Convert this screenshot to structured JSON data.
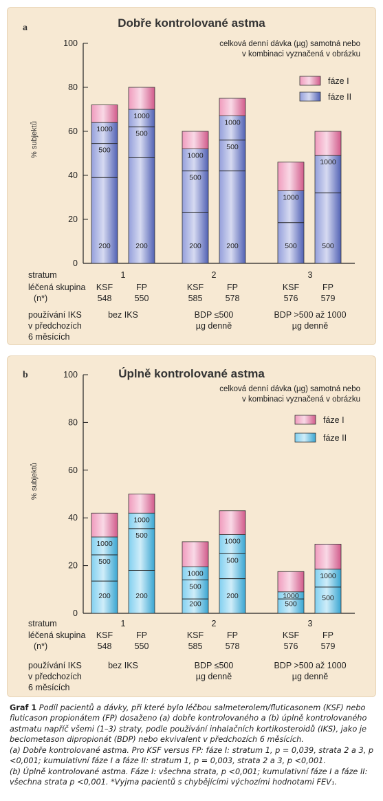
{
  "panels": [
    {
      "letter": "a",
      "title": "Dobře kontrolované astma",
      "note_line1": "celková denní dávka (µg) samotná nebo",
      "note_line2": "v kombinaci vyznačená v obrázku",
      "ylabel": "% subjektů",
      "legend": [
        {
          "label": "fáze I",
          "color": "#e8659a"
        },
        {
          "label": "fáze II",
          "color": "#5a6cc8"
        }
      ],
      "row_labels": {
        "stratum": "stratum",
        "group": "léčená skupina",
        "n": "(n*)",
        "iks1": "používání IKS",
        "iks2": "v předchozích",
        "iks3": "6 měsících"
      },
      "strata": [
        {
          "number": "1",
          "iks1": "bez IKS",
          "iks2": ""
        },
        {
          "number": "2",
          "iks1": "BDP ≤500",
          "iks2": "µg denně"
        },
        {
          "number": "3",
          "iks1": "BDP >500 až 1000",
          "iks2": "µg denně"
        }
      ],
      "chart_data": {
        "type": "bar",
        "ylim": [
          0,
          100
        ],
        "yticks": [
          0,
          20,
          40,
          60,
          80,
          100
        ],
        "bars": [
          {
            "group": "KSF",
            "n": "548",
            "stratum": "1",
            "phase2_top": 64,
            "phase1_top": 72,
            "dividers": [
              {
                "v": 54.5,
                "label_above": "1000"
              },
              {
                "v": 39,
                "label_above": "500"
              }
            ],
            "base_label": "200",
            "segments": [
              {
                "dose": "200",
                "from": 0,
                "to": 39
              },
              {
                "dose": "500",
                "from": 39,
                "to": 54.5
              },
              {
                "dose": "1000",
                "from": 54.5,
                "to": 64
              }
            ]
          },
          {
            "group": "FP",
            "n": "550",
            "stratum": "1",
            "phase2_top": 70,
            "phase1_top": 80,
            "dividers": [
              {
                "v": 62,
                "label_above": "1000"
              },
              {
                "v": 48,
                "label_above": "500"
              }
            ],
            "base_label": "200",
            "segments": [
              {
                "dose": "200",
                "from": 0,
                "to": 48
              },
              {
                "dose": "500",
                "from": 48,
                "to": 62
              },
              {
                "dose": "1000",
                "from": 62,
                "to": 70
              }
            ]
          },
          {
            "group": "KSF",
            "n": "585",
            "stratum": "2",
            "phase2_top": 52,
            "phase1_top": 60,
            "dividers": [
              {
                "v": 42,
                "label_above": "1000"
              },
              {
                "v": 23,
                "label_above": "500"
              }
            ],
            "base_label": "200",
            "segments": [
              {
                "dose": "200",
                "from": 0,
                "to": 23
              },
              {
                "dose": "500",
                "from": 23,
                "to": 42
              },
              {
                "dose": "1000",
                "from": 42,
                "to": 52
              }
            ]
          },
          {
            "group": "FP",
            "n": "578",
            "stratum": "2",
            "phase2_top": 67,
            "phase1_top": 75,
            "dividers": [
              {
                "v": 56,
                "label_above": "1000"
              },
              {
                "v": 42,
                "label_above": "500"
              }
            ],
            "base_label": "200",
            "segments": [
              {
                "dose": "200",
                "from": 0,
                "to": 42
              },
              {
                "dose": "500",
                "from": 42,
                "to": 56
              },
              {
                "dose": "1000",
                "from": 56,
                "to": 67
              }
            ]
          },
          {
            "group": "KSF",
            "n": "576",
            "stratum": "3",
            "phase2_top": 33,
            "phase1_top": 46,
            "dividers": [
              {
                "v": 18.5,
                "label_above": "1000"
              }
            ],
            "base_label": "500",
            "segments": [
              {
                "dose": "500",
                "from": 0,
                "to": 18.5
              },
              {
                "dose": "1000",
                "from": 18.5,
                "to": 33
              }
            ]
          },
          {
            "group": "FP",
            "n": "579",
            "stratum": "3",
            "phase2_top": 49,
            "phase1_top": 60,
            "dividers": [
              {
                "v": 32,
                "label_above": "1000"
              }
            ],
            "base_label": "500",
            "segments": [
              {
                "dose": "500",
                "from": 0,
                "to": 32
              },
              {
                "dose": "1000",
                "from": 32,
                "to": 49
              }
            ]
          }
        ]
      }
    },
    {
      "letter": "b",
      "title": "Úplně kontrolované astma",
      "note_line1": "celková denní dávka (µg) samotná nebo",
      "note_line2": "v kombinaci vyznačená v obrázku",
      "ylabel": "% subjektů",
      "legend": [
        {
          "label": "fáze I",
          "color": "#e8659a"
        },
        {
          "label": "fáze II",
          "color": "#3fb7e8"
        }
      ],
      "row_labels": {
        "stratum": "stratum",
        "group": "léčená skupina",
        "n": "(n*)",
        "iks1": "používání IKS",
        "iks2": "v předchozích",
        "iks3": "6 měsících"
      },
      "strata": [
        {
          "number": "1",
          "iks1": "bez IKS",
          "iks2": ""
        },
        {
          "number": "2",
          "iks1": "BDP ≤500",
          "iks2": "µg denně"
        },
        {
          "number": "3",
          "iks1": "BDP >500 až 1000",
          "iks2": "µg denně"
        }
      ],
      "chart_data": {
        "type": "bar",
        "ylim": [
          0,
          100
        ],
        "yticks": [
          0,
          20,
          40,
          60,
          80,
          100
        ],
        "bars": [
          {
            "group": "KSF",
            "n": "548",
            "stratum": "1",
            "phase2_top": 32,
            "phase1_top": 42,
            "dividers": [
              {
                "v": 24.5,
                "label_above": "1000"
              },
              {
                "v": 13.5,
                "label_above": "500"
              }
            ],
            "base_label": "200",
            "segments": [
              {
                "dose": "200",
                "from": 0,
                "to": 13.5
              },
              {
                "dose": "500",
                "from": 13.5,
                "to": 24.5
              },
              {
                "dose": "1000",
                "from": 24.5,
                "to": 32
              }
            ]
          },
          {
            "group": "FP",
            "n": "550",
            "stratum": "1",
            "phase2_top": 42,
            "phase1_top": 50,
            "dividers": [
              {
                "v": 35.5,
                "label_above": "1000"
              },
              {
                "v": 18,
                "label_above": "500"
              }
            ],
            "base_label": "200",
            "segments": [
              {
                "dose": "200",
                "from": 0,
                "to": 18
              },
              {
                "dose": "500",
                "from": 18,
                "to": 35.5
              },
              {
                "dose": "1000",
                "from": 35.5,
                "to": 42
              }
            ]
          },
          {
            "group": "KSF",
            "n": "585",
            "stratum": "2",
            "phase2_top": 19.5,
            "phase1_top": 30,
            "dividers": [
              {
                "v": 14,
                "label_above": "1000"
              },
              {
                "v": 6,
                "label_above": "500"
              }
            ],
            "base_label": "200",
            "segments": [
              {
                "dose": "200",
                "from": 0,
                "to": 6
              },
              {
                "dose": "500",
                "from": 6,
                "to": 14
              },
              {
                "dose": "1000",
                "from": 14,
                "to": 19.5
              }
            ]
          },
          {
            "group": "FP",
            "n": "578",
            "stratum": "2",
            "phase2_top": 33,
            "phase1_top": 43,
            "dividers": [
              {
                "v": 25,
                "label_above": "1000"
              },
              {
                "v": 14.5,
                "label_above": "500"
              }
            ],
            "base_label": "200",
            "segments": [
              {
                "dose": "200",
                "from": 0,
                "to": 14.5
              },
              {
                "dose": "500",
                "from": 14.5,
                "to": 25
              },
              {
                "dose": "1000",
                "from": 25,
                "to": 33
              }
            ]
          },
          {
            "group": "KSF",
            "n": "576",
            "stratum": "3",
            "phase2_top": 9,
            "phase1_top": 17.5,
            "dividers": [
              {
                "v": 6,
                "label_above": "1000"
              }
            ],
            "base_label": "500",
            "segments": [
              {
                "dose": "500",
                "from": 0,
                "to": 6
              },
              {
                "dose": "1000",
                "from": 6,
                "to": 9
              }
            ]
          },
          {
            "group": "FP",
            "n": "579",
            "stratum": "3",
            "phase2_top": 18.5,
            "phase1_top": 29,
            "dividers": [
              {
                "v": 11,
                "label_above": "1000"
              }
            ],
            "base_label": "500",
            "segments": [
              {
                "dose": "500",
                "from": 0,
                "to": 11
              },
              {
                "dose": "1000",
                "from": 11,
                "to": 18.5
              }
            ]
          }
        ]
      }
    }
  ],
  "caption": {
    "label": "Graf 1",
    "line1": "Podíl pacientů a dávky, při které bylo léčbou salmeterolem/fluticasonem (KSF) nebo fluticason propionátem (FP) dosaženo (a) dobře kontrolovaného a (b) úplně kontrolovaného astmatu napříč všemi (1–3) straty, podle používání inhalačních kortikosteroidů (IKS), jako je beclometason dipropionát (BDP) nebo ekvivalent v předchozích 6 měsících.",
    "line2": "(a) Dobře kontrolované astma. Pro KSF versus FP: fáze I: stratum 1, p = 0,039, strata 2 a 3, p <0,001; kumulativní fáze I a fáze II: stratum 1, p = 0,003, strata 2 a 3, p <0,001.",
    "line3": "(b) Úplně kontrolované astma. Fáze I: všechna strata, p <0,001; kumulativní fáze I a fáze II: všechna strata p <0,001. *Vyjma pacientů s chybějícími výchozími hodnotami FEV₁."
  }
}
